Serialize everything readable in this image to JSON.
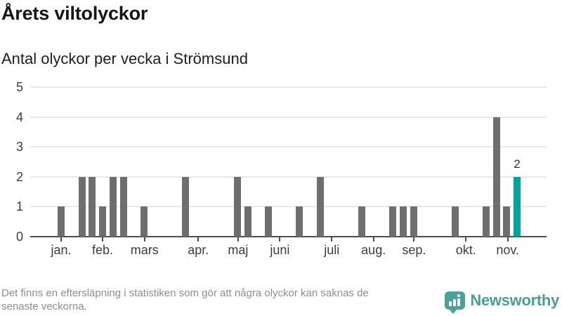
{
  "header": {
    "title": "Årets viltolyckor",
    "subtitle": "Antal olyckor per vecka i Strömsund"
  },
  "chart_data": {
    "type": "bar",
    "title": "Årets viltolyckor",
    "subtitle": "Antal olyckor per vecka i Strömsund",
    "x_unit": "vecka (week of year)",
    "week_start": 1,
    "values": [
      1,
      0,
      2,
      2,
      1,
      2,
      2,
      0,
      1,
      0,
      0,
      0,
      2,
      0,
      0,
      0,
      0,
      2,
      1,
      0,
      1,
      0,
      0,
      1,
      0,
      2,
      0,
      0,
      0,
      1,
      0,
      0,
      1,
      1,
      1,
      0,
      0,
      0,
      1,
      0,
      0,
      1,
      4,
      1,
      2
    ],
    "ylim": [
      0,
      5
    ],
    "yticks": [
      0,
      1,
      2,
      3,
      4,
      5
    ],
    "grid": true,
    "legend": false,
    "bar_color": "#6e6e6e",
    "grid_color": "#e8e8e8",
    "axis_color": "#4d4d4d",
    "label_color": "#3c3c3c",
    "months": [
      {
        "label": "jan.",
        "week": 1
      },
      {
        "label": "feb.",
        "week": 5
      },
      {
        "label": "mars",
        "week": 9.05
      },
      {
        "label": "apr.",
        "week": 14.24
      },
      {
        "label": "maj",
        "week": 18.08
      },
      {
        "label": "juni",
        "week": 22.11
      },
      {
        "label": "juli",
        "week": 27.12
      },
      {
        "label": "aug.",
        "week": 31.15
      },
      {
        "label": "sep.",
        "week": 35.06
      },
      {
        "label": "okt.",
        "week": 40.07
      },
      {
        "label": "nov.",
        "week": 44.1
      }
    ],
    "highlight": {
      "week": 45,
      "value": 2,
      "label": "2",
      "color": "#00a49c"
    }
  },
  "footer": {
    "lines": [
      "Det finns en eftersläpning i statistiken som gör att några olyckor kan saknas de",
      "senaste veckorna."
    ]
  },
  "brand": {
    "name": "Newsworthy",
    "color": "#4e9c97",
    "icon": "newsworthy-bubble-barchart-icon",
    "icon_color": "#4aa19b"
  }
}
